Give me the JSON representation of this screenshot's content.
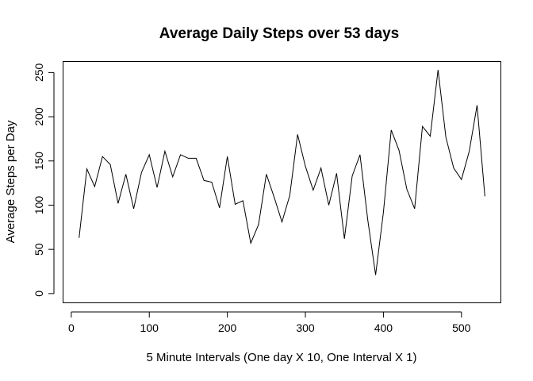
{
  "chart_data": {
    "type": "line",
    "title": "Average Daily Steps over 53 days",
    "xlabel": "5 Minute Intervals (One day X 10, One Interval X 1)",
    "ylabel": "Average Steps per Day",
    "xlim": [
      -10,
      550
    ],
    "ylim": [
      -10,
      262
    ],
    "xticks": [
      0,
      100,
      200,
      300,
      400,
      500
    ],
    "yticks": [
      0,
      50,
      100,
      150,
      200,
      250
    ],
    "grid": false,
    "series": [
      {
        "x": [
          10,
          20,
          30,
          40,
          50,
          60,
          70,
          80,
          90,
          100,
          110,
          120,
          130,
          140,
          150,
          160,
          170,
          180,
          190,
          200,
          210,
          220,
          230,
          240,
          250,
          260,
          270,
          280,
          290,
          300,
          310,
          320,
          330,
          340,
          350,
          360,
          370,
          380,
          390,
          400,
          410,
          420,
          430,
          440,
          450,
          460,
          470,
          480,
          490,
          500,
          510,
          520,
          530
        ],
        "values": [
          63,
          141,
          121,
          155,
          146,
          102,
          135,
          96,
          137,
          157,
          120,
          161,
          132,
          157,
          153,
          153,
          128,
          126,
          97,
          155,
          101,
          105,
          57,
          78,
          135,
          109,
          81,
          111,
          180,
          144,
          117,
          142,
          100,
          136,
          62,
          133,
          157,
          83,
          21,
          92,
          185,
          162,
          118,
          96,
          189,
          178,
          253,
          177,
          142,
          129,
          161,
          213,
          110
        ]
      }
    ]
  }
}
